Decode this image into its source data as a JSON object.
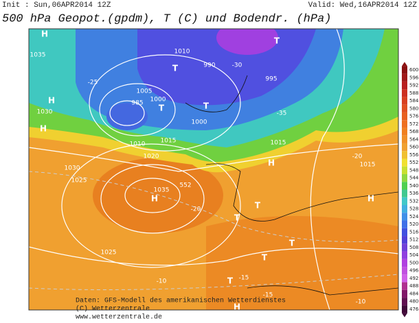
{
  "header": {
    "init": "Init : Sun,06APR2014 12Z",
    "valid": "Valid: Wed,16APR2014 12Z",
    "title": "500 hPa Geopot.(gpdm), T (C) und Bodendr. (hPa)"
  },
  "colorbar": {
    "ticks": [
      600,
      596,
      592,
      588,
      584,
      580,
      576,
      572,
      568,
      564,
      560,
      556,
      552,
      548,
      544,
      540,
      536,
      532,
      528,
      524,
      520,
      516,
      512,
      508,
      504,
      500,
      496,
      492,
      488,
      484,
      480,
      476
    ],
    "colors": [
      "#8b1010",
      "#a01818",
      "#b82020",
      "#cc3020",
      "#d84020",
      "#e05020",
      "#e86020",
      "#ee7020",
      "#f08020",
      "#f09028",
      "#f0a030",
      "#f0c030",
      "#f0e030",
      "#c8e030",
      "#90d840",
      "#50d050",
      "#40c890",
      "#40c8c8",
      "#40b0e0",
      "#4090e8",
      "#4070e8",
      "#4050e0",
      "#5040d8",
      "#7040d8",
      "#9040e0",
      "#b040e0",
      "#c050e0",
      "#d060e8",
      "#b03090",
      "#801868",
      "#601050",
      "#400838"
    ]
  },
  "map_labels": [
    "H",
    "H",
    "H",
    "H",
    "H",
    "H",
    "H",
    "T",
    "T",
    "T",
    "T",
    "T",
    "T",
    "T",
    "T",
    "T",
    "1035",
    "1035",
    "1030",
    "1030",
    "1025",
    "1025",
    "1020",
    "1015",
    "1015",
    "1015",
    "1010",
    "1010",
    "1005",
    "1000",
    "1000",
    "995",
    "990",
    "985",
    "552",
    "-20",
    "-20",
    "-15",
    "-15",
    "-10",
    "-10",
    "-25",
    "-30",
    "-35"
  ],
  "footer": {
    "lines": [
      "Daten: GFS-Modell des amerikanischen Wetterdienstes",
      "(C) Wetterzentrale",
      "www.wetterzentrale.de"
    ]
  }
}
